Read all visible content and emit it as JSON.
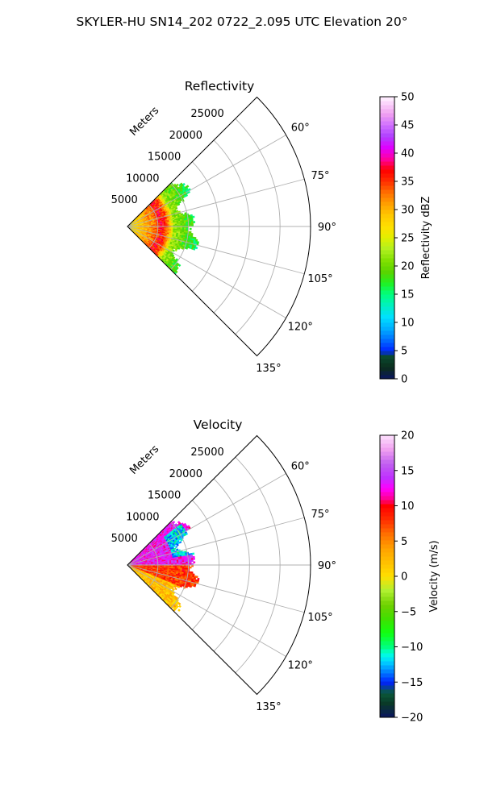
{
  "suptitle": "SKYLER-HU  SN14_202  0722_2.095 UTC Elevation 20°",
  "chart_data": [
    {
      "type": "heatmap",
      "subtype": "polar-sector",
      "title": "Reflectivity",
      "radial_axis_label": "Meters",
      "radial_ticks": [
        5000,
        10000,
        15000,
        20000,
        25000
      ],
      "radial_tick_labels": [
        "5000",
        "10000",
        "15000",
        "20000",
        "25000"
      ],
      "radial_range": [
        0,
        30000
      ],
      "theta_range_deg": [
        45,
        135
      ],
      "theta_ticks_deg": [
        60,
        75,
        90,
        105,
        120,
        135
      ],
      "theta_tick_labels": [
        "60°",
        "75°",
        "90°",
        "105°",
        "120°",
        "135°"
      ],
      "grid": true,
      "data_extent_m": 12000,
      "colorbar": {
        "label": "Reflectivity dBZ",
        "min": 0,
        "max": 50,
        "ticks": [
          0,
          5,
          10,
          15,
          20,
          25,
          30,
          35,
          40,
          45,
          50
        ],
        "tick_labels": [
          "0",
          "5",
          "10",
          "15",
          "20",
          "25",
          "30",
          "35",
          "40",
          "45",
          "50"
        ],
        "colormap": "pyart_HomeyerRainbow",
        "color_stops": [
          [
            0,
            "#0a1560"
          ],
          [
            2,
            "#0b2c1c"
          ],
          [
            4,
            "#0a4a30"
          ],
          [
            5,
            "#0024ff"
          ],
          [
            7,
            "#0070ff"
          ],
          [
            9,
            "#00b0ff"
          ],
          [
            11,
            "#00e0ff"
          ],
          [
            13,
            "#00f0c0"
          ],
          [
            15,
            "#00ff80"
          ],
          [
            17,
            "#20f020"
          ],
          [
            19,
            "#5ad400"
          ],
          [
            21,
            "#80e000"
          ],
          [
            23,
            "#b0f020"
          ],
          [
            25,
            "#e0f000"
          ],
          [
            27,
            "#ffe000"
          ],
          [
            29,
            "#ffc800"
          ],
          [
            31,
            "#ffa000"
          ],
          [
            33,
            "#ff7000"
          ],
          [
            35,
            "#ff3000"
          ],
          [
            37,
            "#ff0000"
          ],
          [
            39,
            "#ff00a0"
          ],
          [
            41,
            "#e000ff"
          ],
          [
            43,
            "#b040ff"
          ],
          [
            45,
            "#d070ff"
          ],
          [
            47,
            "#f0a0f0"
          ],
          [
            49,
            "#fbd8fb"
          ],
          [
            50,
            "#fff4ff"
          ]
        ],
        "description": "range-dependent reflectivity field, 0–12 km; yellow/orange core near radar, red ring around 4–6 km, green outer echoes"
      },
      "field_profile": [
        {
          "range_m": 0,
          "value": 26
        },
        {
          "range_m": 1500,
          "value": 28
        },
        {
          "range_m": 3000,
          "value": 30
        },
        {
          "range_m": 4500,
          "value": 33
        },
        {
          "range_m": 5500,
          "value": 37
        },
        {
          "range_m": 6500,
          "value": 33
        },
        {
          "range_m": 7500,
          "value": 22
        },
        {
          "range_m": 9500,
          "value": 19
        },
        {
          "range_m": 11500,
          "value": 16
        }
      ]
    },
    {
      "type": "heatmap",
      "subtype": "polar-sector",
      "title": "Velocity",
      "radial_axis_label": "Meters",
      "radial_ticks": [
        5000,
        10000,
        15000,
        20000,
        25000
      ],
      "radial_tick_labels": [
        "5000",
        "10000",
        "15000",
        "20000",
        "25000"
      ],
      "radial_range": [
        0,
        30000
      ],
      "theta_range_deg": [
        45,
        135
      ],
      "theta_ticks_deg": [
        60,
        75,
        90,
        105,
        120,
        135
      ],
      "theta_tick_labels": [
        "60°",
        "75°",
        "90°",
        "105°",
        "120°",
        "135°"
      ],
      "grid": true,
      "data_extent_m": 12000,
      "colorbar": {
        "label": "Velocity (m/s)",
        "min": -20,
        "max": 20,
        "ticks": [
          -20,
          -15,
          -10,
          -5,
          0,
          5,
          10,
          15,
          20
        ],
        "tick_labels": [
          "−20",
          "−15",
          "−10",
          "−5",
          "0",
          "5",
          "10",
          "15",
          "20"
        ],
        "colormap": "pyart_BuDRd18",
        "color_stops": [
          [
            -20,
            "#0a1560"
          ],
          [
            -18,
            "#0a3a28"
          ],
          [
            -16.5,
            "#0b5a3a"
          ],
          [
            -15,
            "#0022ff"
          ],
          [
            -13.5,
            "#0080ff"
          ],
          [
            -12,
            "#00d8ff"
          ],
          [
            -11,
            "#00ffe0"
          ],
          [
            -10,
            "#00ff80"
          ],
          [
            -8,
            "#10ff10"
          ],
          [
            -6,
            "#40e000"
          ],
          [
            -4,
            "#70d000"
          ],
          [
            -2,
            "#b0f030"
          ],
          [
            0,
            "#ffe000"
          ],
          [
            2,
            "#ffc000"
          ],
          [
            4,
            "#ffa000"
          ],
          [
            6,
            "#ff7000"
          ],
          [
            8,
            "#ff3000"
          ],
          [
            10,
            "#ff0000"
          ],
          [
            11,
            "#ff0090"
          ],
          [
            12.5,
            "#ff00ff"
          ],
          [
            14,
            "#c030ff"
          ],
          [
            16,
            "#c060f0"
          ],
          [
            18,
            "#f0a0f0"
          ],
          [
            20,
            "#fde0fd"
          ]
        ],
        "description": "radial velocity field, 0–12 km; magenta/pink on the upper (60–90°) side, red/orange on the lower (90–125°) side, cyan patch near 12 km at ~70°"
      },
      "field_regions": [
        {
          "theta_deg": [
            52,
            80
          ],
          "range_m": [
            7500,
            11000
          ],
          "value": -12,
          "note": "cyan patch"
        },
        {
          "theta_deg": [
            45,
            90
          ],
          "range_m": [
            0,
            12000
          ],
          "value": 13
        },
        {
          "theta_deg": [
            90,
            112
          ],
          "range_m": [
            0,
            12000
          ],
          "value": 8
        },
        {
          "theta_deg": [
            112,
            135
          ],
          "range_m": [
            0,
            12000
          ],
          "value": 2
        }
      ]
    }
  ]
}
